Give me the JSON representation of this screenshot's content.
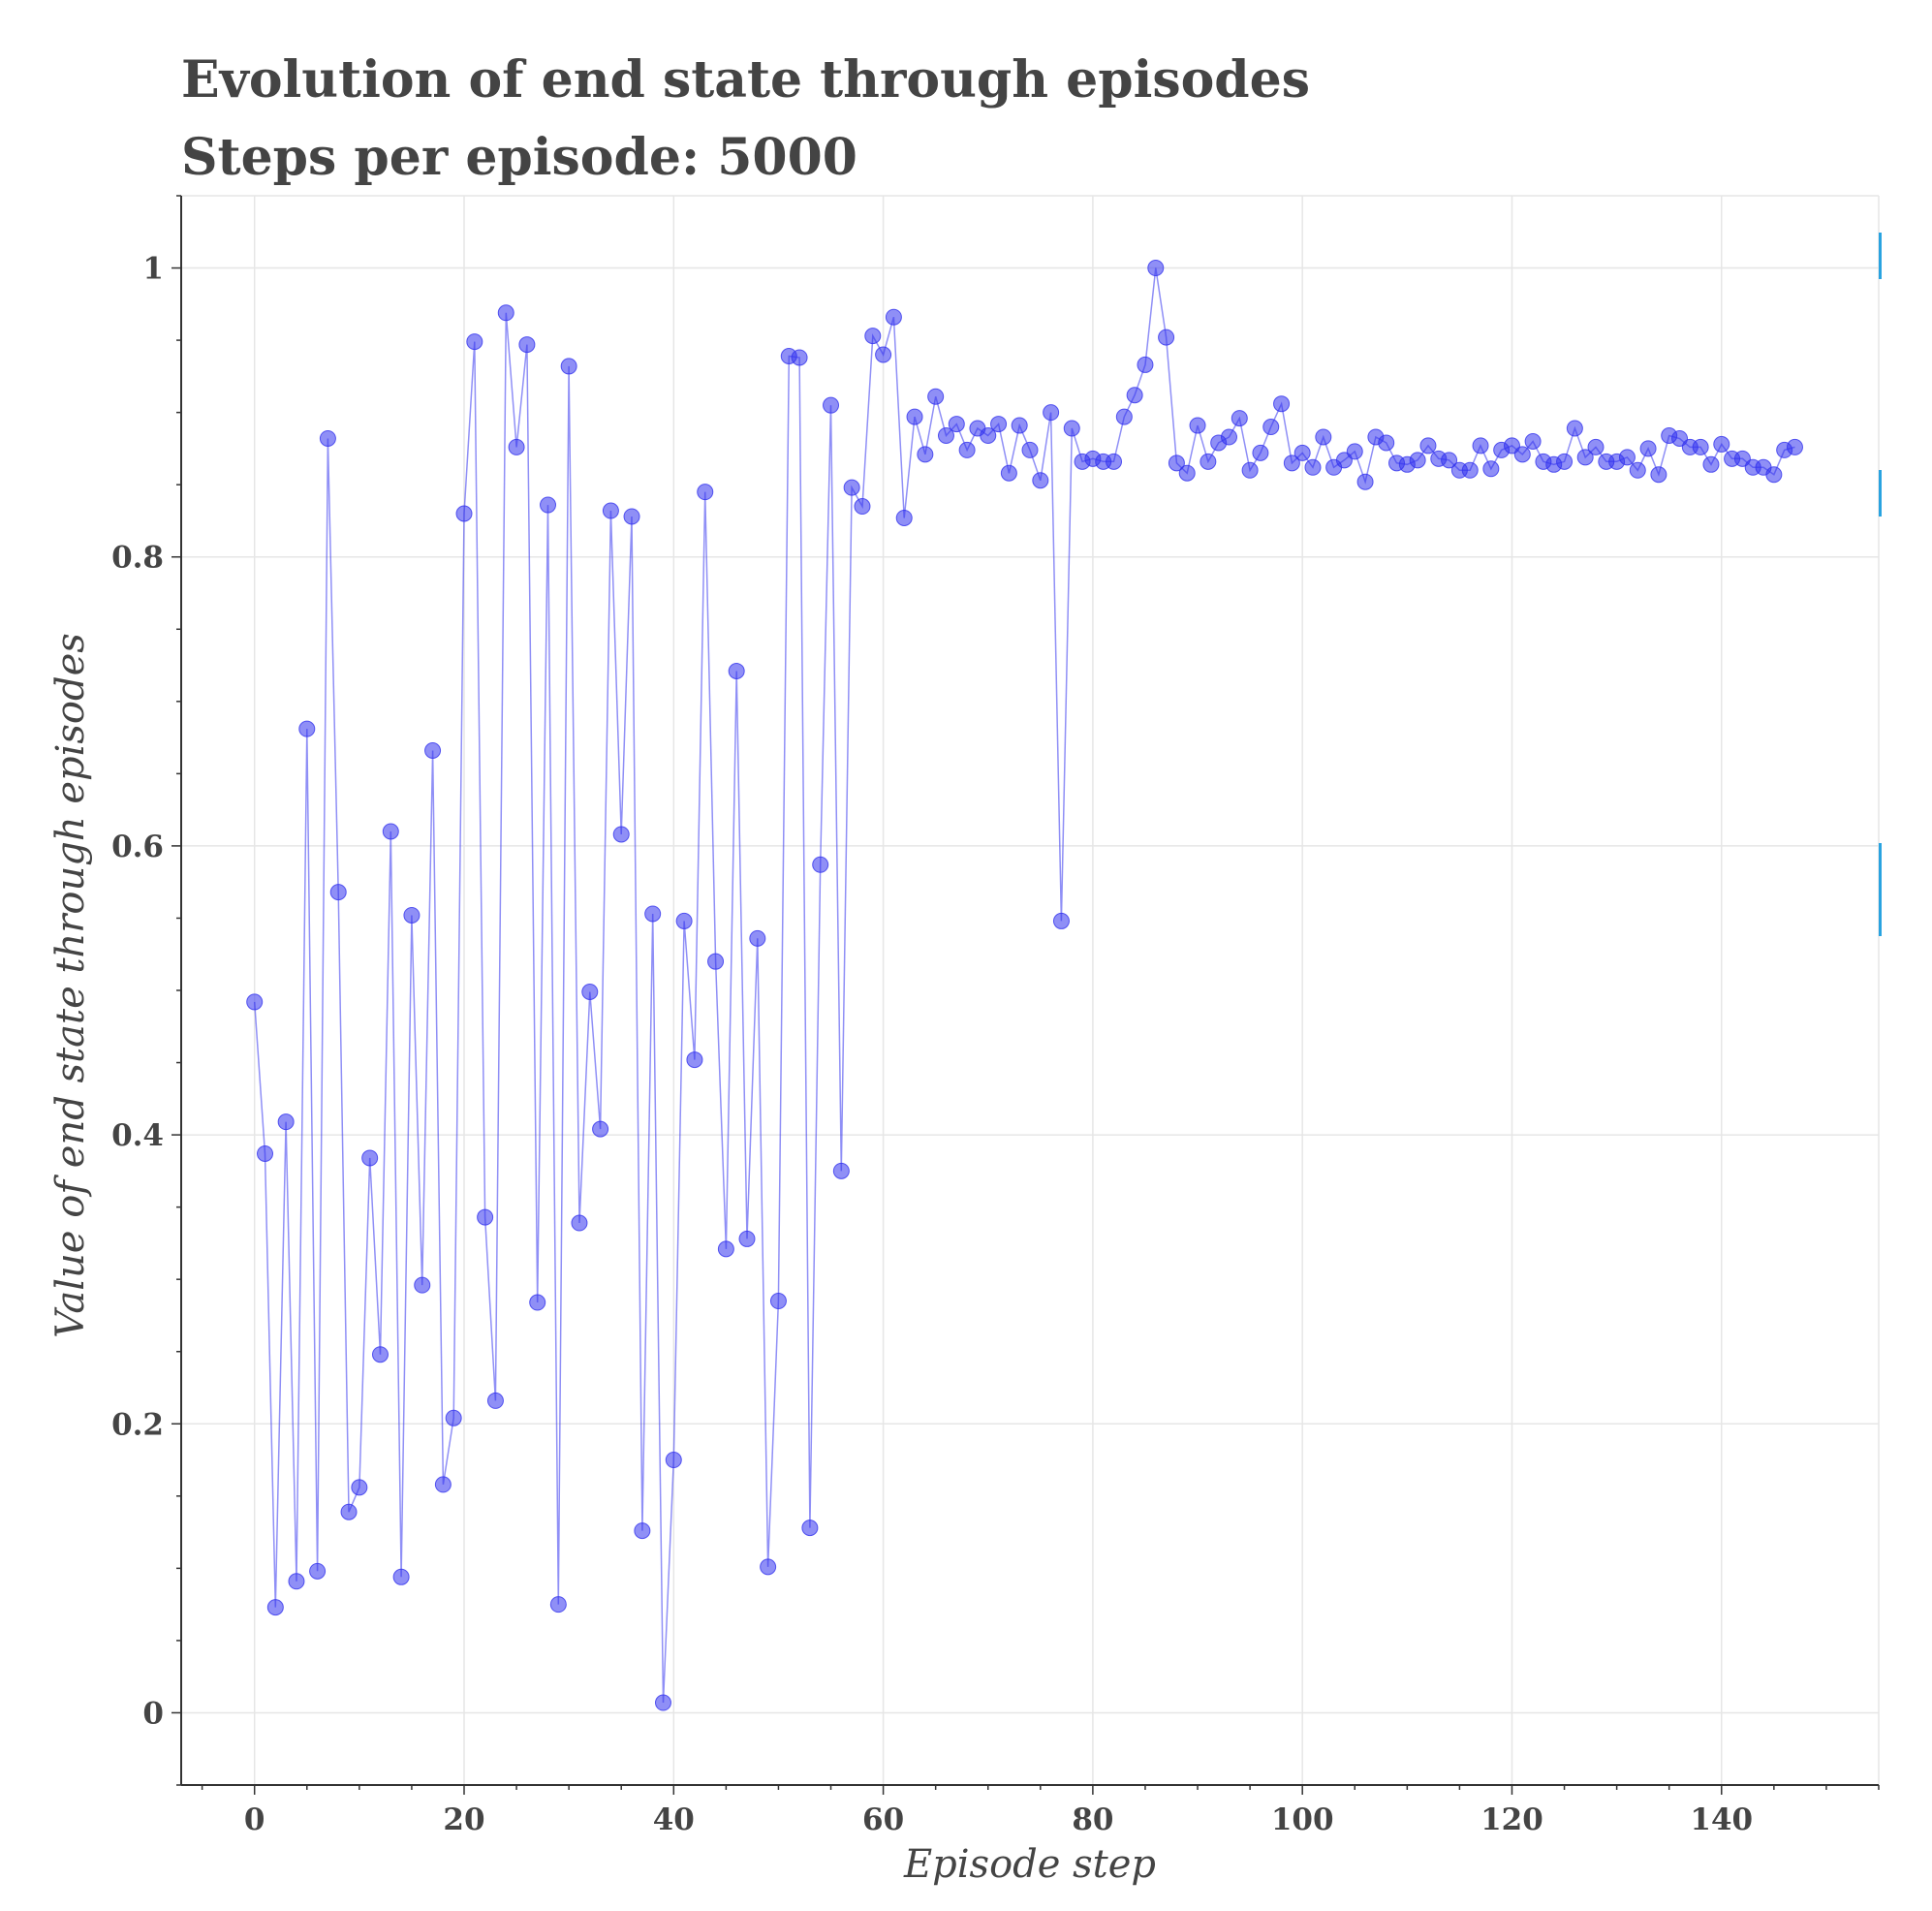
{
  "chart_data": {
    "type": "line",
    "title": "Evolution of end state through episodes",
    "subtitle": "Steps per episode: 5000",
    "xlabel": "Episode step",
    "ylabel": "Value of end state through episodes",
    "xlim": [
      -7,
      155
    ],
    "ylim": [
      -0.05,
      1.05
    ],
    "x_ticks": [
      0,
      20,
      40,
      60,
      80,
      100,
      120,
      140
    ],
    "x_tick_labels": [
      "0",
      "20",
      "40",
      "60",
      "80",
      "100",
      "120",
      "140"
    ],
    "y_ticks": [
      0,
      0.2,
      0.4,
      0.6,
      0.8,
      1
    ],
    "y_tick_labels": [
      "0",
      "0.2",
      "0.4",
      "0.6",
      "0.8",
      "1"
    ],
    "grid": true,
    "series": [
      {
        "color": "#3333ee",
        "marker": "circle",
        "x_start": 0,
        "values": [
          0.492,
          0.387,
          0.073,
          0.409,
          0.091,
          0.681,
          0.098,
          0.882,
          0.568,
          0.139,
          0.156,
          0.384,
          0.248,
          0.61,
          0.094,
          0.552,
          0.296,
          0.666,
          0.158,
          0.204,
          0.83,
          0.949,
          0.343,
          0.216,
          0.969,
          0.876,
          0.947,
          0.284,
          0.836,
          0.075,
          0.932,
          0.339,
          0.499,
          0.404,
          0.832,
          0.608,
          0.828,
          0.126,
          0.553,
          0.007,
          0.175,
          0.548,
          0.452,
          0.845,
          0.52,
          0.321,
          0.721,
          0.328,
          0.536,
          0.101,
          0.285,
          0.939,
          0.938,
          0.128,
          0.587,
          0.905,
          0.375,
          0.848,
          0.835,
          0.953,
          0.94,
          0.966,
          0.827,
          0.897,
          0.871,
          0.911,
          0.884,
          0.892,
          0.874,
          0.889,
          0.884,
          0.892,
          0.858,
          0.891,
          0.874,
          0.853,
          0.9,
          0.548,
          0.889,
          0.866,
          0.868,
          0.866,
          0.866,
          0.897,
          0.912,
          0.933,
          1.0,
          0.952,
          0.865,
          0.858,
          0.891,
          0.866,
          0.879,
          0.883,
          0.896,
          0.86,
          0.872,
          0.89,
          0.906,
          0.865,
          0.872,
          0.862,
          0.883,
          0.862,
          0.867,
          0.873,
          0.852,
          0.883,
          0.879,
          0.865,
          0.864,
          0.867,
          0.877,
          0.868,
          0.867,
          0.86,
          0.86,
          0.877,
          0.861,
          0.874,
          0.877,
          0.871,
          0.88,
          0.866,
          0.864,
          0.866,
          0.889,
          0.869,
          0.876,
          0.866,
          0.866,
          0.869,
          0.86,
          0.875,
          0.857,
          0.884,
          0.882,
          0.876,
          0.876,
          0.864,
          0.878,
          0.868,
          0.868,
          0.862,
          0.862,
          0.857,
          0.874,
          0.876
        ]
      }
    ]
  }
}
